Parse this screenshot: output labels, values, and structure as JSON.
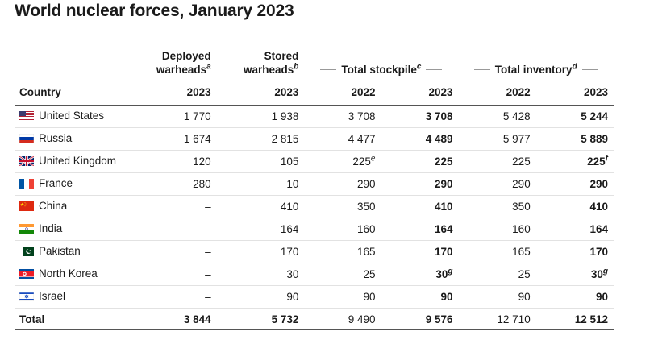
{
  "title": "World nuclear forces, January 2023",
  "headers": {
    "deployed": [
      "Deployed",
      "warheads"
    ],
    "deployed_sup": "a",
    "stored": [
      "Stored",
      "warheads"
    ],
    "stored_sup": "b",
    "total_stockpile": "Total stockpile",
    "total_stockpile_sup": "c",
    "total_inventory": "Total inventory",
    "total_inventory_sup": "d",
    "country": "Country",
    "years": [
      "2023",
      "2023",
      "2022",
      "2023",
      "2022",
      "2023"
    ]
  },
  "rows": [
    {
      "country": "United States",
      "flag": "us",
      "deployed": "1 770",
      "stored": "1 938",
      "stock2022": "3 708",
      "stock2023": "3 708",
      "inv2022": "5 428",
      "inv2023": "5 244"
    },
    {
      "country": "Russia",
      "flag": "ru",
      "deployed": "1 674",
      "stored": "2 815",
      "stock2022": "4 477",
      "stock2023": "4 489",
      "inv2022": "5 977",
      "inv2023": "5 889"
    },
    {
      "country": "United Kingdom",
      "flag": "uk",
      "deployed": "120",
      "stored": "105",
      "stock2022": "225",
      "stock2022_sup": "e",
      "stock2023": "225",
      "inv2022": "225",
      "inv2023": "225",
      "inv2023_sup": "f"
    },
    {
      "country": "France",
      "flag": "fr",
      "deployed": "280",
      "stored": "10",
      "stock2022": "290",
      "stock2023": "290",
      "inv2022": "290",
      "inv2023": "290"
    },
    {
      "country": "China",
      "flag": "cn",
      "deployed": "–",
      "stored": "410",
      "stock2022": "350",
      "stock2023": "410",
      "inv2022": "350",
      "inv2023": "410"
    },
    {
      "country": "India",
      "flag": "in",
      "deployed": "–",
      "stored": "164",
      "stock2022": "160",
      "stock2023": "164",
      "inv2022": "160",
      "inv2023": "164"
    },
    {
      "country": "Pakistan",
      "flag": "pk",
      "deployed": "–",
      "stored": "170",
      "stock2022": "165",
      "stock2023": "170",
      "inv2022": "165",
      "inv2023": "170"
    },
    {
      "country": "North Korea",
      "flag": "kp",
      "deployed": "–",
      "stored": "30",
      "stock2022": "25",
      "stock2023": "30",
      "stock2023_sup": "g",
      "inv2022": "25",
      "inv2023": "30",
      "inv2023_sup": "g"
    },
    {
      "country": "Israel",
      "flag": "il",
      "deployed": "–",
      "stored": "90",
      "stock2022": "90",
      "stock2023": "90",
      "inv2022": "90",
      "inv2023": "90"
    }
  ],
  "total": {
    "country": "Total",
    "deployed": "3 844",
    "stored": "5 732",
    "stock2022": "9 490",
    "stock2023": "9 576",
    "inv2022": "12 710",
    "inv2023": "12 512"
  },
  "colors": {
    "text": "#1a1a1a",
    "rule": "#333333",
    "row_divider": "#e2e2e2",
    "group_line": "#999999"
  }
}
